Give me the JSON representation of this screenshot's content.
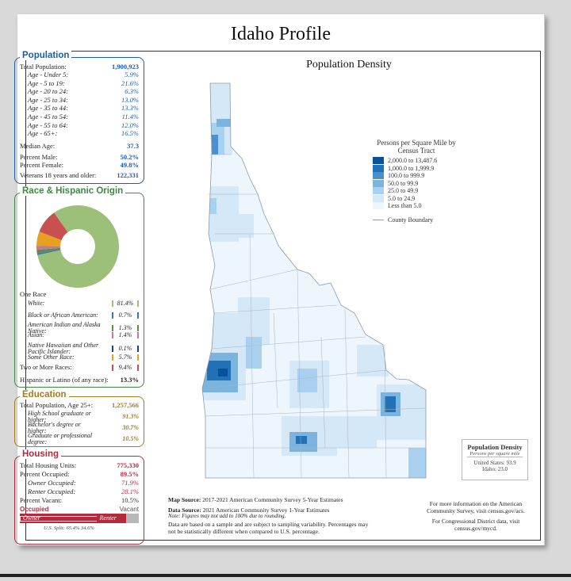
{
  "title": "Idaho Profile",
  "population": {
    "header": "Population",
    "total_label": "Total Population:",
    "total": "1,900,923",
    "ages": [
      {
        "label": "Age - Under 5:",
        "value": "5.9%"
      },
      {
        "label": "Age - 5 to 19:",
        "value": "21.6%"
      },
      {
        "label": "Age - 20 to 24:",
        "value": "6.3%"
      },
      {
        "label": "Age - 25 to 34:",
        "value": "13.0%"
      },
      {
        "label": "Age - 35 to 44:",
        "value": "13.3%"
      },
      {
        "label": "Age - 45 to 54:",
        "value": "11.4%"
      },
      {
        "label": "Age - 55 to 64:",
        "value": "12.0%"
      },
      {
        "label": "Age - 65+:",
        "value": "16.5%"
      }
    ],
    "median_label": "Median Age:",
    "median": "37.3",
    "male_label": "Percent Male:",
    "male": "50.2%",
    "female_label": "Percent Female:",
    "female": "49.8%",
    "vet_label": "Veterans 18 years and older:",
    "vet": "122,331"
  },
  "race": {
    "header": "Race & Hispanic Origin",
    "one_race": "One Race",
    "items": [
      {
        "label": "White:",
        "value": "81.4%",
        "color": "#9cc07a"
      },
      {
        "label": "Black or African American:",
        "value": "0.7%",
        "color": "#3a76b5"
      },
      {
        "label": "American Indian and Alaska Native:",
        "value": "1.3%",
        "color": "#5f8c4a"
      },
      {
        "label": "Asian:",
        "value": "1.4%",
        "color": "#c878a0"
      },
      {
        "label": "Native Hawaiian and Other Pacific Islander:",
        "value": "0.1%",
        "color": "#1b3f8a"
      },
      {
        "label": "Some Other Race:",
        "value": "5.7%",
        "color": "#e8a020"
      },
      {
        "label": "Two or More Races:",
        "value": "9.4%",
        "color": "#c85050"
      }
    ],
    "hisp_label": "Hispanic or Latino (of any race):",
    "hisp": "13.3%",
    "pie": [
      81.4,
      0.7,
      1.3,
      1.4,
      0.1,
      5.7,
      9.4
    ]
  },
  "education": {
    "header": "Education",
    "total_label": "Total Population, Age 25+:",
    "total": "1,257,566",
    "items": [
      {
        "label": "High School graduate or higher:",
        "value": "91.3%"
      },
      {
        "label": "Bachelor's degree or higher:",
        "value": "30.7%"
      },
      {
        "label": "Graduate or professional degree:",
        "value": "10.5%"
      }
    ]
  },
  "housing": {
    "header": "Housing",
    "units_label": "Total Housing Units:",
    "units": "775,330",
    "occ_label": "Percent Occupied:",
    "occ": "89.5%",
    "own_label": "Owner Occupied:",
    "own": "71.9%",
    "rent_label": "Renter Occupied:",
    "rent": "28.1%",
    "vac_label": "Percent Vacant:",
    "vac": "10.5%",
    "bar_occupied": "Occupied",
    "bar_vacant": "Vacant",
    "bar_owner": "Owner",
    "bar_renter": "Renter",
    "split": "U.S. Split: 65.4% 34.6%",
    "occ_frac": 0.895,
    "owner_frac": 0.719
  },
  "map": {
    "title": "Population Density",
    "legend_title": "Persons per Square Mile by Census Tract",
    "legend": [
      {
        "label": "2,000.0 to 13,487.6",
        "color": "#08519c"
      },
      {
        "label": "1,000.0 to 1,999.9",
        "color": "#2171b5"
      },
      {
        "label": "100.0 to 999.9",
        "color": "#4a90cf"
      },
      {
        "label": "50.0 to 99.9",
        "color": "#7cb4e0"
      },
      {
        "label": "25.0 to 49.9",
        "color": "#a9d0ef"
      },
      {
        "label": "5.0 to 24.9",
        "color": "#d4e8f8"
      },
      {
        "label": "Less than 5.0",
        "color": "#eef6fd"
      }
    ],
    "county_boundary": "County Boundary",
    "density_title": "Population Density",
    "density_sub": "Persons per square mile",
    "us_label": "United States:",
    "us_value": "93.9",
    "id_label": "Idaho:",
    "id_value": "23.0"
  },
  "footer": {
    "map_source_label": "Map Source:",
    "map_source": "2017-2021 American Community Survey 5-Year Estimates",
    "data_source_label": "Data Source:",
    "data_source": "2021 American Community Survey 1-Year Estimates",
    "note": "Note: Figures may not add to 100% due to rounding.",
    "sampling": "Data are based on a sample and are subject to sampling variability. Percentages may not be statistically different when compared to U.S. percentage.",
    "more_info": "For more information on the American Community Survey, visit census.gov/acs.",
    "congress": "For Congressional District data, visit census.gov/mycd."
  }
}
